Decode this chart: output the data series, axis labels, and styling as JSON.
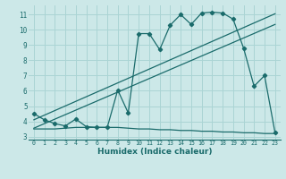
{
  "xlabel": "Humidex (Indice chaleur)",
  "bg_color": "#cce8e8",
  "grid_color": "#aad4d4",
  "line_color": "#1a6b6b",
  "xlim": [
    -0.5,
    23.5
  ],
  "ylim": [
    2.8,
    11.6
  ],
  "yticks": [
    3,
    4,
    5,
    6,
    7,
    8,
    9,
    10,
    11
  ],
  "xticks": [
    0,
    1,
    2,
    3,
    4,
    5,
    6,
    7,
    8,
    9,
    10,
    11,
    12,
    13,
    14,
    15,
    16,
    17,
    18,
    19,
    20,
    21,
    22,
    23
  ],
  "series1_x": [
    0,
    1,
    2,
    3,
    4,
    5,
    6,
    7,
    8,
    9,
    10,
    11,
    12,
    13,
    14,
    15,
    16,
    17,
    18,
    19,
    20,
    21,
    22,
    23
  ],
  "series1_y": [
    4.5,
    4.1,
    3.85,
    3.7,
    4.15,
    3.65,
    3.6,
    3.6,
    6.05,
    4.55,
    9.75,
    9.75,
    8.7,
    10.3,
    11.0,
    10.35,
    11.1,
    11.15,
    11.1,
    10.7,
    8.8,
    6.3,
    7.0,
    3.25
  ],
  "series2_x": [
    0,
    1,
    2,
    3,
    4,
    5,
    6,
    7,
    8,
    9,
    10,
    11,
    12,
    13,
    14,
    15,
    16,
    17,
    18,
    19,
    20,
    21,
    22,
    23
  ],
  "series2_y": [
    3.5,
    3.5,
    3.5,
    3.55,
    3.6,
    3.6,
    3.6,
    3.6,
    3.6,
    3.55,
    3.5,
    3.5,
    3.45,
    3.45,
    3.4,
    3.4,
    3.35,
    3.35,
    3.3,
    3.3,
    3.25,
    3.25,
    3.2,
    3.2
  ],
  "series3_x": [
    0,
    23
  ],
  "series3_y": [
    4.1,
    11.05
  ],
  "series4_x": [
    0,
    23
  ],
  "series4_y": [
    3.55,
    10.35
  ]
}
